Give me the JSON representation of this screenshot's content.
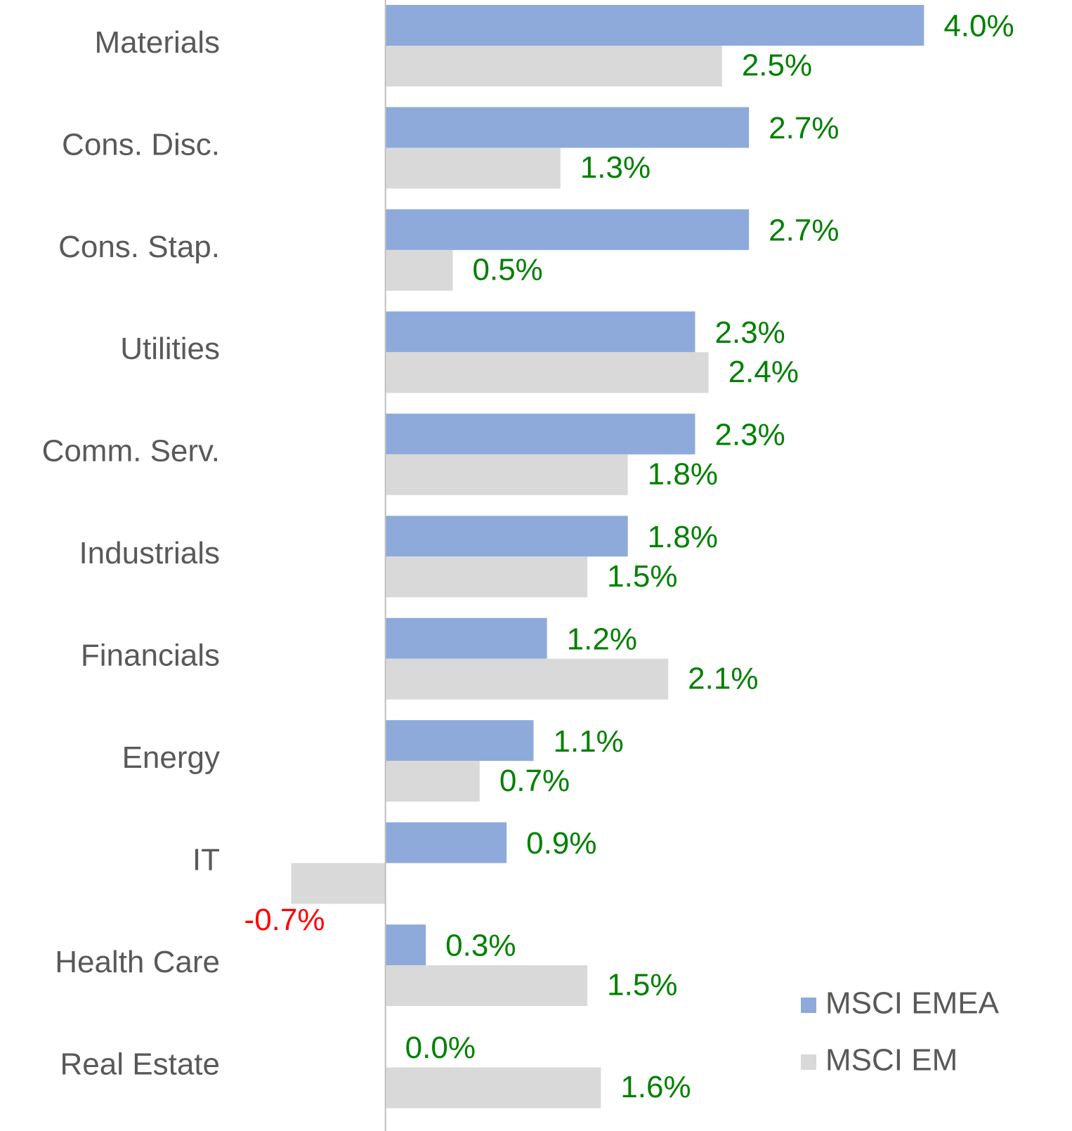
{
  "chart_data": {
    "type": "bar",
    "orientation": "horizontal",
    "categories": [
      "Materials",
      "Cons. Disc.",
      "Cons. Stap.",
      "Utilities",
      "Comm. Serv.",
      "Industrials",
      "Financials",
      "Energy",
      "IT",
      "Health Care",
      "Real Estate"
    ],
    "series": [
      {
        "name": "MSCI EMEA",
        "color": "#8eaadb",
        "values": [
          4.0,
          2.7,
          2.7,
          2.3,
          2.3,
          1.8,
          1.2,
          1.1,
          0.9,
          0.3,
          0.0
        ],
        "value_labels": [
          "4.0%",
          "2.7%",
          "2.7%",
          "2.3%",
          "2.3%",
          "1.8%",
          "1.2%",
          "1.1%",
          "0.9%",
          "0.3%",
          "0.0%"
        ]
      },
      {
        "name": "MSCI EM",
        "color": "#d9d9d9",
        "values": [
          2.5,
          1.3,
          0.5,
          2.4,
          1.8,
          1.5,
          2.1,
          0.7,
          -0.7,
          1.5,
          1.6
        ],
        "value_labels": [
          "2.5%",
          "1.3%",
          "0.5%",
          "2.4%",
          "1.8%",
          "1.5%",
          "2.1%",
          "0.7%",
          "-0.7%",
          "1.5%",
          "1.6%"
        ]
      }
    ],
    "xlim": [
      -1,
      5
    ],
    "label_colors": {
      "positive": "#008000",
      "negative": "#ff0000"
    },
    "legend": "lower right"
  }
}
